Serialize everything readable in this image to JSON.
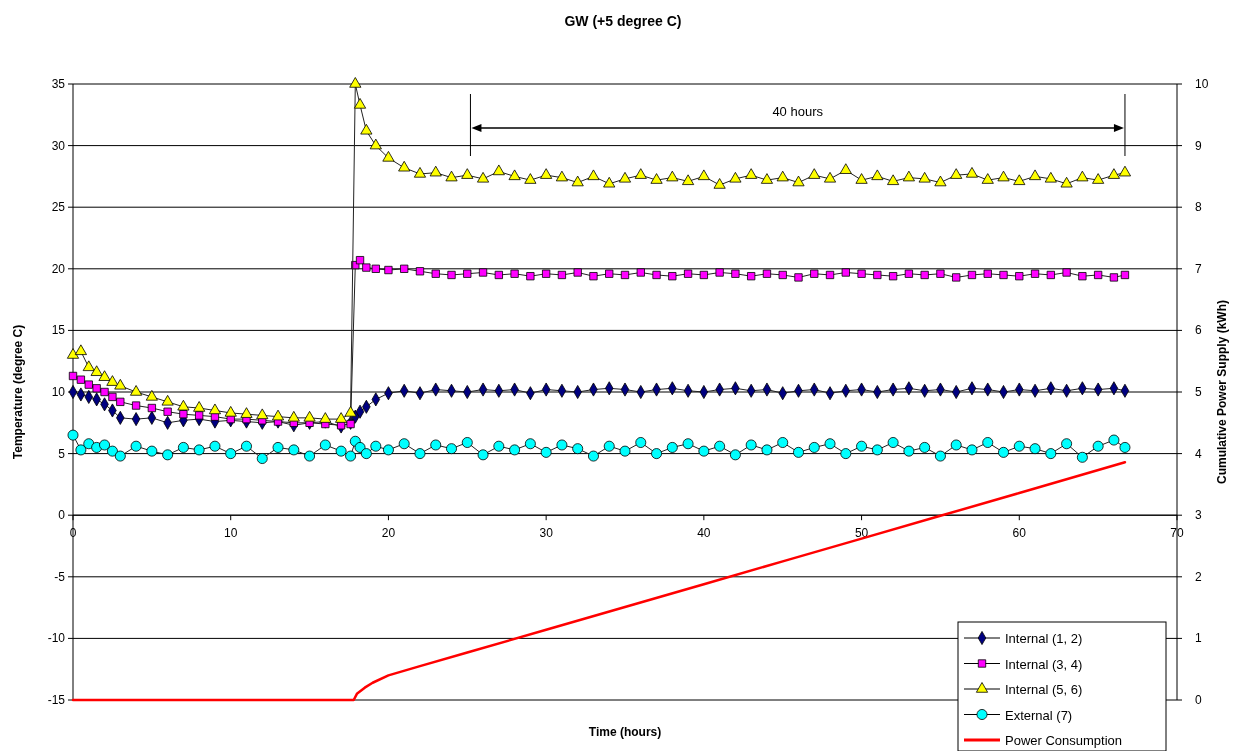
{
  "chart_data": {
    "type": "line",
    "title": "GW (+5 degree C)",
    "xlabel": "Time (hours)",
    "ylabel": "Temperature (degree C)",
    "y2label": "Cumulative Power Supply (kWh)",
    "x": [
      0,
      0.5,
      1,
      1.5,
      2,
      2.5,
      3,
      4,
      5,
      6,
      7,
      8,
      9,
      10,
      11,
      12,
      13,
      14,
      15,
      16,
      17,
      17.6,
      17.9,
      18.2,
      18.6,
      19.2,
      20,
      21,
      22,
      23,
      24,
      25,
      26,
      27,
      28,
      29,
      30,
      31,
      32,
      33,
      34,
      35,
      36,
      37,
      38,
      39,
      40,
      41,
      42,
      43,
      44,
      45,
      46,
      47,
      48,
      49,
      50,
      51,
      52,
      53,
      54,
      55,
      56,
      57,
      58,
      59,
      60,
      61,
      62,
      63,
      64,
      65,
      66,
      66.7
    ],
    "series": [
      {
        "name": "Internal (1, 2)",
        "color": "#000080",
        "marker": "diamond",
        "values": [
          10,
          9.8,
          9.6,
          9.4,
          9,
          8.5,
          7.9,
          7.8,
          7.9,
          7.5,
          7.7,
          7.8,
          7.6,
          7.7,
          7.6,
          7.5,
          7.6,
          7.3,
          7.5,
          7.6,
          7.2,
          7.5,
          8.0,
          8.4,
          8.8,
          9.4,
          9.9,
          10.1,
          9.9,
          10.2,
          10.1,
          10.0,
          10.2,
          10.1,
          10.2,
          9.9,
          10.2,
          10.1,
          10.0,
          10.2,
          10.3,
          10.2,
          10.0,
          10.2,
          10.3,
          10.1,
          10.0,
          10.2,
          10.3,
          10.1,
          10.2,
          9.9,
          10.1,
          10.2,
          9.9,
          10.1,
          10.2,
          10.0,
          10.2,
          10.3,
          10.1,
          10.2,
          10.0,
          10.3,
          10.2,
          10.0,
          10.2,
          10.1,
          10.3,
          10.1,
          10.3,
          10.2,
          10.3,
          10.1
        ]
      },
      {
        "name": "Internal (3, 4)",
        "color": "#ff00ff",
        "marker": "square",
        "values": [
          11.3,
          11,
          10.6,
          10.3,
          10,
          9.6,
          9.2,
          8.9,
          8.7,
          8.4,
          8.2,
          8.1,
          8.0,
          7.8,
          7.8,
          7.7,
          7.6,
          7.5,
          7.5,
          7.4,
          7.3,
          7.4,
          20.3,
          20.7,
          20.1,
          20.0,
          19.9,
          20.0,
          19.8,
          19.6,
          19.5,
          19.6,
          19.7,
          19.5,
          19.6,
          19.4,
          19.6,
          19.5,
          19.7,
          19.4,
          19.6,
          19.5,
          19.7,
          19.5,
          19.4,
          19.6,
          19.5,
          19.7,
          19.6,
          19.4,
          19.6,
          19.5,
          19.3,
          19.6,
          19.5,
          19.7,
          19.6,
          19.5,
          19.4,
          19.6,
          19.5,
          19.6,
          19.3,
          19.5,
          19.6,
          19.5,
          19.4,
          19.6,
          19.5,
          19.7,
          19.4,
          19.5,
          19.3,
          19.5
        ]
      },
      {
        "name": "Internal (5, 6)",
        "color": "#ffff00",
        "marker": "triangle",
        "values": [
          13,
          13.3,
          12,
          11.6,
          11.2,
          10.8,
          10.5,
          10,
          9.6,
          9.2,
          8.8,
          8.7,
          8.5,
          8.3,
          8.2,
          8.1,
          8,
          7.9,
          7.9,
          7.8,
          7.8,
          8.3,
          35,
          33.3,
          31.2,
          30,
          29,
          28.2,
          27.7,
          27.8,
          27.4,
          27.6,
          27.3,
          27.9,
          27.5,
          27.2,
          27.6,
          27.4,
          27.0,
          27.5,
          26.9,
          27.3,
          27.6,
          27.2,
          27.4,
          27.1,
          27.5,
          26.8,
          27.3,
          27.6,
          27.2,
          27.4,
          27.0,
          27.6,
          27.3,
          28.0,
          27.2,
          27.5,
          27.1,
          27.4,
          27.3,
          27.0,
          27.6,
          27.7,
          27.2,
          27.4,
          27.1,
          27.5,
          27.3,
          26.9,
          27.4,
          27.2,
          27.6,
          27.8
        ]
      },
      {
        "name": "External (7)",
        "color": "#00ffff",
        "marker": "circle",
        "values": [
          6.5,
          5.3,
          5.8,
          5.5,
          5.7,
          5.2,
          4.8,
          5.6,
          5.2,
          4.9,
          5.5,
          5.3,
          5.6,
          5.0,
          5.6,
          4.6,
          5.5,
          5.3,
          4.8,
          5.7,
          5.2,
          4.8,
          6.0,
          5.5,
          5.0,
          5.6,
          5.3,
          5.8,
          5.0,
          5.7,
          5.4,
          5.9,
          4.9,
          5.6,
          5.3,
          5.8,
          5.1,
          5.7,
          5.4,
          4.8,
          5.6,
          5.2,
          5.9,
          5.0,
          5.5,
          5.8,
          5.2,
          5.6,
          4.9,
          5.7,
          5.3,
          5.9,
          5.1,
          5.5,
          5.8,
          5.0,
          5.6,
          5.3,
          5.9,
          5.2,
          5.5,
          4.8,
          5.7,
          5.3,
          5.9,
          5.1,
          5.6,
          5.4,
          5.0,
          5.8,
          4.7,
          5.6,
          6.1,
          5.5
        ]
      },
      {
        "name": "Power Consumption",
        "color": "#ff0000",
        "marker": "none",
        "axis": "y2",
        "x": [
          0,
          17.8,
          18.0,
          18.5,
          19,
          20,
          22,
          25,
          30,
          35,
          40,
          45,
          50,
          55,
          60,
          66.7
        ],
        "values": [
          0,
          0,
          0.1,
          0.2,
          0.28,
          0.4,
          0.55,
          0.77,
          1.14,
          1.51,
          1.88,
          2.25,
          2.62,
          2.99,
          3.36,
          3.86
        ]
      }
    ],
    "xlim": [
      0,
      70
    ],
    "xticks": [
      0,
      10,
      20,
      30,
      40,
      50,
      60,
      70
    ],
    "ylim": [
      -15,
      35
    ],
    "yticks": [
      -15,
      -10,
      -5,
      0,
      5,
      10,
      15,
      20,
      25,
      30,
      35
    ],
    "y2lim": [
      0,
      10
    ],
    "y2ticks": [
      0,
      1,
      2,
      3,
      4,
      5,
      6,
      7,
      8,
      9,
      10
    ],
    "ref_lines": [
      {
        "axis": "x",
        "value": 25.2
      },
      {
        "axis": "x",
        "value": 66.7
      }
    ],
    "annotations": [
      "40 hours"
    ],
    "grid": "y",
    "legend": "bottom right"
  }
}
